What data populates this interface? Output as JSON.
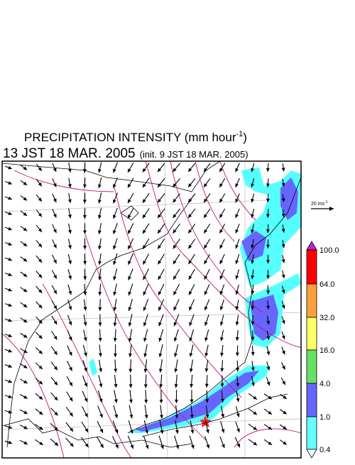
{
  "title": {
    "main": "PRECIPITATION INTENSITY (mm hour",
    "sup": "-1",
    "end": ")"
  },
  "subtitle": {
    "time": "13 JST 18 MAR. 2005",
    "init": "(init. 9 JST 18 MAR. 2005)"
  },
  "wind_scale": {
    "label": "20 ms",
    "sup": "-1"
  },
  "colorbar": {
    "labels": [
      "100.0",
      "64.0",
      "32.0",
      "16.0",
      "4.0",
      "1.0",
      "0.4"
    ]
  }
}
